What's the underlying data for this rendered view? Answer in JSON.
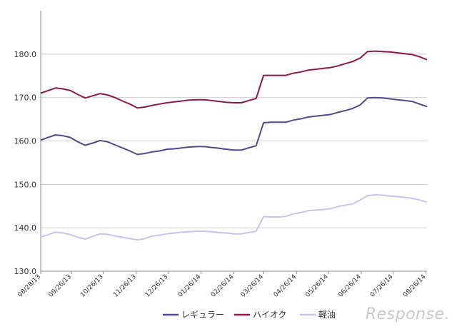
{
  "chart_data": {
    "type": "line",
    "title": "",
    "xlabel": "",
    "ylabel": "",
    "ylim": [
      130,
      190
    ],
    "yticks": [
      "130.0",
      "140.0",
      "150.0",
      "160.0",
      "170.0",
      "180.0"
    ],
    "x": [
      "08/28/13",
      "09/04/13",
      "09/11/13",
      "09/18/13",
      "09/25/13",
      "10/02/13",
      "10/09/13",
      "10/16/13",
      "10/23/13",
      "10/30/13",
      "11/06/13",
      "11/13/13",
      "11/20/13",
      "11/27/13",
      "12/04/13",
      "12/11/13",
      "12/18/13",
      "12/25/13",
      "01/01/14",
      "01/08/14",
      "01/15/14",
      "01/22/14",
      "01/29/14",
      "02/05/14",
      "02/12/14",
      "02/19/14",
      "02/26/14",
      "03/05/14",
      "03/12/14",
      "03/19/14",
      "03/26/14",
      "04/02/14",
      "04/09/14",
      "04/16/14",
      "04/23/14",
      "04/30/14",
      "05/07/14",
      "05/14/14",
      "05/21/14",
      "05/28/14",
      "06/04/14",
      "06/11/14",
      "06/18/14",
      "06/25/14",
      "07/02/14",
      "07/09/14",
      "07/16/14",
      "07/23/14",
      "07/30/14",
      "08/06/14",
      "08/13/14",
      "08/20/14",
      "08/27/14"
    ],
    "xticks": [
      "08/28/13",
      "09/26/13",
      "10/26/13",
      "11/26/13",
      "12/26/13",
      "01/26/14",
      "02/26/14",
      "03/26/14",
      "04/26/14",
      "05/26/14",
      "06/26/14",
      "07/26/14",
      "08/26/14"
    ],
    "series": [
      {
        "name": "レギュラー",
        "color": "#4b4b8a",
        "values": [
          160.2,
          160.8,
          161.4,
          161.2,
          160.8,
          159.8,
          159.0,
          159.5,
          160.1,
          159.8,
          159.1,
          158.4,
          157.7,
          156.9,
          157.1,
          157.5,
          157.7,
          158.1,
          158.2,
          158.4,
          158.6,
          158.7,
          158.7,
          158.5,
          158.3,
          158.1,
          157.9,
          157.9,
          158.4,
          158.9,
          164.2,
          164.3,
          164.3,
          164.3,
          164.8,
          165.1,
          165.5,
          165.7,
          165.9,
          166.1,
          166.6,
          167.0,
          167.5,
          168.3,
          169.9,
          170.0,
          169.9,
          169.7,
          169.5,
          169.3,
          169.1,
          168.5,
          167.9
        ]
      },
      {
        "name": "ハイオク",
        "color": "#8b1a4a",
        "values": [
          171.0,
          171.6,
          172.2,
          172.0,
          171.6,
          170.7,
          169.9,
          170.4,
          170.9,
          170.6,
          170.0,
          169.2,
          168.5,
          167.6,
          167.8,
          168.2,
          168.5,
          168.8,
          169.0,
          169.2,
          169.4,
          169.5,
          169.5,
          169.3,
          169.1,
          168.9,
          168.8,
          168.8,
          169.3,
          169.8,
          175.1,
          175.1,
          175.1,
          175.1,
          175.6,
          175.9,
          176.3,
          176.5,
          176.7,
          176.9,
          177.3,
          177.8,
          178.3,
          179.1,
          180.6,
          180.7,
          180.6,
          180.5,
          180.3,
          180.1,
          179.9,
          179.4,
          178.7
        ]
      },
      {
        "name": "軽油",
        "color": "#c4c4f0",
        "values": [
          137.9,
          138.4,
          139.0,
          138.8,
          138.4,
          137.8,
          137.4,
          138.0,
          138.6,
          138.5,
          138.1,
          137.8,
          137.5,
          137.2,
          137.5,
          138.1,
          138.3,
          138.6,
          138.8,
          139.0,
          139.1,
          139.2,
          139.2,
          139.1,
          138.9,
          138.8,
          138.6,
          138.6,
          138.9,
          139.2,
          142.6,
          142.5,
          142.5,
          142.6,
          143.2,
          143.5,
          143.9,
          144.1,
          144.2,
          144.4,
          144.9,
          145.2,
          145.5,
          146.4,
          147.4,
          147.6,
          147.5,
          147.3,
          147.2,
          147.0,
          146.8,
          146.4,
          145.9
        ]
      }
    ],
    "grid": "y",
    "legend": "bottom"
  },
  "watermark": "Response."
}
